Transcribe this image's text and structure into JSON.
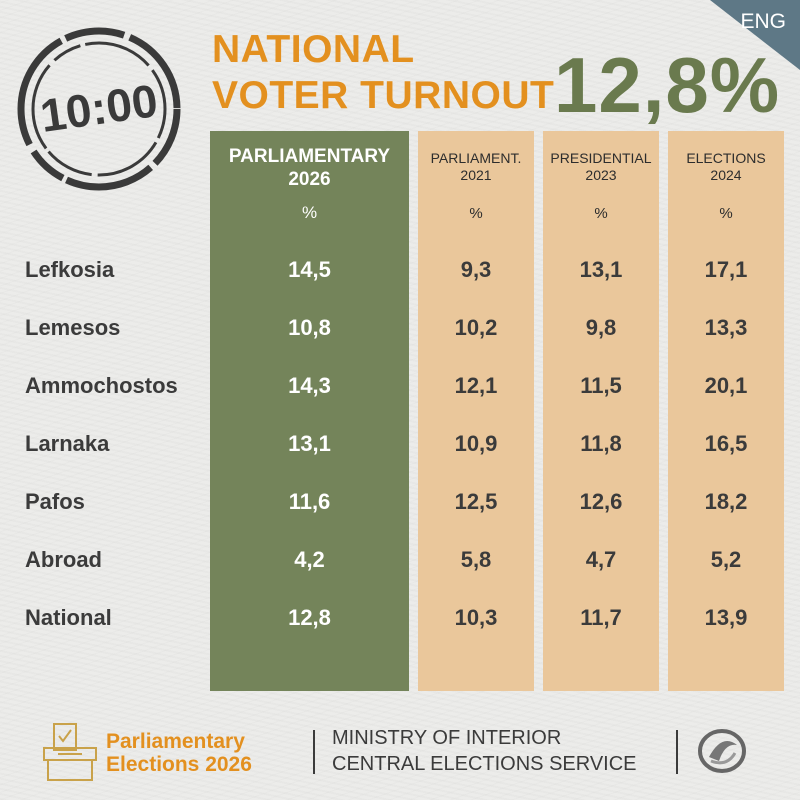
{
  "lang_label": "ENG",
  "time_stamp": "10:00",
  "title": {
    "line1": "NATIONAL",
    "line2": "VOTER TURNOUT"
  },
  "headline_turnout": "12,8%",
  "columns": [
    {
      "line1": "PARLIAMENTARY",
      "line2": "2026",
      "unit": "%"
    },
    {
      "line1": "PARLIAMENT.",
      "line2": "2021",
      "unit": "%"
    },
    {
      "line1": "PRESIDENTIAL",
      "line2": "2023",
      "unit": "%"
    },
    {
      "line1": "ELECTIONS",
      "line2": "2024",
      "unit": "%"
    }
  ],
  "rows": [
    {
      "label": "Lefkosia",
      "values": [
        "14,5",
        "9,3",
        "13,1",
        "17,1"
      ]
    },
    {
      "label": "Lemesos",
      "values": [
        "10,8",
        "10,2",
        "9,8",
        "13,3"
      ]
    },
    {
      "label": "Ammochostos",
      "values": [
        "14,3",
        "12,1",
        "11,5",
        "20,1"
      ]
    },
    {
      "label": "Larnaka",
      "values": [
        "13,1",
        "10,9",
        "11,8",
        "16,5"
      ]
    },
    {
      "label": "Pafos",
      "values": [
        "11,6",
        "12,5",
        "12,6",
        "18,2"
      ]
    },
    {
      "label": "Abroad",
      "values": [
        "4,2",
        "5,8",
        "4,7",
        "5,2"
      ]
    },
    {
      "label": "National",
      "values": [
        "12,8",
        "10,3",
        "11,7",
        "13,9"
      ]
    }
  ],
  "footer": {
    "elections_line1": "Parliamentary",
    "elections_line2": "Elections 2026",
    "ministry_line1": "MINISTRY OF INTERIOR",
    "ministry_line2": "CENTRAL ELECTIONS SERVICE"
  },
  "colors": {
    "accent_orange": "#e3901f",
    "olive_green": "#74845a",
    "beige": "#eac79b",
    "corner_blue": "#5e7886"
  }
}
